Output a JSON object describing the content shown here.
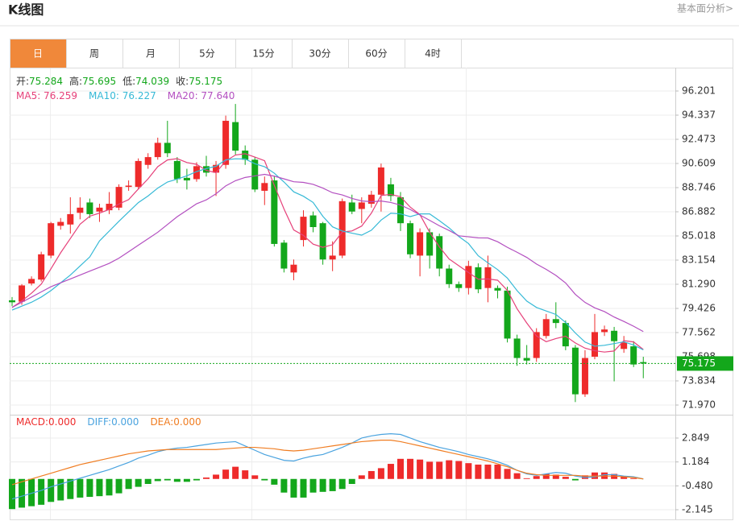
{
  "header": {
    "title": "K线图",
    "link": "基本面分析>"
  },
  "tabs": [
    "日",
    "周",
    "月",
    "5分",
    "15分",
    "30分",
    "60分",
    "4时"
  ],
  "active_tab": 0,
  "chart_data": [
    {
      "type": "candlestick",
      "info_labels": [
        "开:",
        "高:",
        "低:",
        "收:"
      ],
      "up_color": "#ee2b2b",
      "down_color": "#13a71b",
      "last_price_color": "#13a71b",
      "open": [
        80.05,
        79.95,
        81.35,
        81.65,
        83.5,
        85.8,
        85.9,
        86.8,
        87.6,
        86.9,
        87.0,
        87.2,
        88.8,
        88.8,
        90.5,
        91.1,
        92.2,
        90.8,
        89.5,
        89.4,
        90.4,
        89.9,
        90.5,
        93.8,
        91.6,
        90.9,
        88.5,
        89.3,
        84.5,
        82.2,
        84.7,
        86.6,
        86.0,
        83.2,
        83.5,
        87.6,
        87.1,
        87.5,
        88.2,
        89.0,
        88.0,
        86.0,
        83.5,
        85.3,
        85.0,
        82.5,
        81.3,
        81.0,
        82.6,
        81.0,
        81.0,
        80.8,
        77.1,
        75.6,
        75.6,
        77.3,
        78.6,
        78.3,
        76.4,
        72.8,
        75.7,
        77.6,
        77.7,
        76.3,
        76.5,
        75.284
      ],
      "high": [
        80.3,
        81.3,
        81.9,
        83.8,
        86.1,
        86.4,
        88.0,
        88.0,
        87.9,
        87.5,
        88.4,
        89.0,
        89.3,
        91.0,
        91.4,
        92.6,
        93.9,
        91.1,
        90.2,
        90.7,
        91.2,
        90.8,
        94.3,
        95.2,
        92.0,
        91.1,
        89.6,
        89.6,
        84.7,
        83.2,
        87.0,
        86.9,
        86.1,
        84.6,
        87.9,
        88.2,
        88.0,
        88.5,
        90.6,
        89.5,
        88.4,
        86.2,
        85.6,
        85.6,
        85.2,
        82.8,
        81.5,
        83.1,
        82.9,
        83.5,
        81.2,
        81.1,
        77.4,
        76.6,
        77.9,
        79.0,
        79.9,
        78.5,
        76.6,
        76.2,
        79.0,
        78.1,
        78.0,
        77.3,
        76.9,
        75.695
      ],
      "low": [
        79.6,
        79.7,
        81.2,
        81.5,
        83.3,
        85.5,
        85.2,
        86.3,
        86.4,
        86.1,
        86.7,
        87.0,
        88.5,
        88.6,
        90.2,
        90.9,
        91.1,
        89.1,
        88.6,
        89.2,
        89.6,
        88.1,
        90.2,
        91.3,
        90.5,
        88.4,
        87.4,
        84.2,
        82.2,
        81.6,
        84.2,
        85.3,
        82.8,
        82.3,
        83.3,
        86.7,
        86.0,
        87.2,
        86.9,
        87.7,
        85.4,
        83.3,
        81.9,
        82.5,
        81.9,
        81.0,
        80.7,
        80.5,
        80.6,
        79.9,
        80.2,
        76.8,
        75.0,
        75.1,
        75.3,
        77.1,
        77.9,
        76.2,
        72.2,
        72.6,
        75.5,
        77.3,
        73.8,
        76.0,
        74.9,
        74.039
      ],
      "close": [
        79.9,
        81.2,
        81.7,
        83.6,
        86.0,
        86.1,
        86.7,
        87.2,
        86.7,
        87.2,
        87.5,
        88.8,
        88.9,
        90.8,
        91.1,
        92.2,
        91.4,
        89.4,
        89.3,
        90.4,
        89.9,
        90.5,
        93.9,
        91.6,
        90.9,
        88.6,
        89.1,
        84.4,
        82.5,
        82.8,
        86.5,
        85.7,
        83.2,
        83.5,
        87.7,
        86.9,
        87.6,
        88.2,
        90.3,
        88.1,
        86.0,
        83.6,
        85.3,
        83.5,
        82.5,
        81.3,
        81.0,
        82.7,
        80.9,
        82.6,
        80.8,
        77.1,
        75.6,
        75.4,
        77.6,
        78.6,
        78.3,
        76.5,
        72.8,
        75.6,
        77.6,
        77.8,
        76.9,
        76.8,
        75.1,
        75.175
      ],
      "series": [
        {
          "name": "MA5",
          "legend": "MA5: 76.259",
          "color": "#e6417a",
          "values": [
            79.5,
            80.0,
            80.6,
            81.3,
            82.48,
            83.72,
            84.82,
            85.92,
            86.54,
            86.78,
            87.06,
            87.48,
            87.82,
            88.64,
            89.42,
            90.36,
            90.88,
            90.98,
            90.68,
            90.54,
            90.08,
            89.9,
            90.8,
            91.26,
            91.36,
            91.1,
            90.82,
            88.92,
            87.1,
            85.48,
            85.06,
            84.38,
            84.14,
            84.34,
            85.32,
            85.4,
            85.78,
            86.78,
            88.14,
            88.22,
            88.04,
            87.24,
            86.66,
            85.3,
            84.18,
            83.24,
            82.72,
            82.2,
            81.68,
            81.7,
            81.6,
            80.82,
            79.4,
            78.3,
            77.3,
            76.86,
            77.1,
            77.28,
            76.76,
            76.36,
            76.16,
            76.06,
            76.14,
            76.94,
            76.84,
            76.259
          ]
        },
        {
          "name": "MA10",
          "legend": "MA10: 76.227",
          "color": "#36b9d6",
          "values": [
            79.3,
            79.6,
            79.9,
            80.3,
            80.8,
            81.4,
            82.0,
            82.7,
            83.4,
            84.63,
            85.39,
            86.15,
            86.87,
            87.59,
            88.1,
            88.71,
            89.18,
            89.4,
            89.66,
            89.98,
            90.22,
            90.39,
            90.89,
            90.97,
            90.95,
            90.59,
            90.36,
            89.86,
            89.18,
            88.42,
            88.08,
            87.6,
            86.53,
            85.72,
            85.4,
            85.23,
            85.08,
            85.46,
            86.24,
            86.77,
            86.72,
            86.51,
            86.72,
            86.72,
            86.2,
            85.64,
            84.98,
            84.43,
            83.49,
            82.94,
            82.42,
            81.77,
            80.8,
            79.99,
            79.5,
            79.23,
            78.96,
            78.34,
            77.53,
            76.83,
            76.51,
            76.58,
            76.71,
            76.85,
            76.6,
            76.227
          ]
        },
        {
          "name": "MA20",
          "legend": "MA20: 77.640",
          "color": "#b34fc0",
          "values": [
            79.5,
            79.9,
            80.3,
            80.7,
            81.1,
            81.4,
            81.7,
            82.0,
            82.3,
            82.6,
            82.9,
            83.3,
            83.8,
            84.3,
            84.8,
            85.3,
            85.9,
            86.5,
            87.0,
            87.5,
            87.8,
            88.27,
            88.88,
            89.28,
            89.53,
            89.65,
            89.77,
            89.63,
            89.42,
            89.2,
            89.15,
            89.0,
            88.71,
            88.35,
            88.18,
            87.91,
            87.72,
            87.66,
            87.71,
            87.6,
            87.4,
            87.06,
            86.63,
            86.22,
            85.8,
            85.44,
            85.03,
            84.95,
            84.87,
            84.86,
            84.57,
            84.14,
            83.76,
            83.36,
            82.85,
            82.44,
            81.97,
            81.39,
            80.51,
            79.89,
            79.47,
            79.18,
            78.76,
            78.42,
            78.05,
            77.64
          ]
        }
      ],
      "ylim": [
        71.349,
        98.002
      ],
      "yticks": [
        96.201,
        94.337,
        92.473,
        90.609,
        88.746,
        86.882,
        85.018,
        83.154,
        {
          "value": 81.29,
          "label": "81.290"
        },
        79.426,
        77.562,
        75.698,
        73.834,
        {
          "value": 71.97,
          "label": "71.970"
        }
      ],
      "grid": true
    },
    {
      "type": "macd",
      "histogram": {
        "legend": "MACD:0.000",
        "up_color": "#ee2b2b",
        "down_color": "#13a71b",
        "values": [
          -2.1,
          -2.0,
          -1.9,
          -1.8,
          -1.6,
          -1.5,
          -1.4,
          -1.3,
          -1.25,
          -1.2,
          -1.15,
          -1.0,
          -0.7,
          -0.55,
          -0.35,
          -0.15,
          -0.1,
          -0.2,
          -0.2,
          -0.1,
          0.1,
          0.3,
          0.65,
          0.85,
          0.6,
          0.25,
          -0.1,
          -0.4,
          -0.95,
          -1.3,
          -1.3,
          -0.95,
          -0.9,
          -0.85,
          -0.7,
          -0.35,
          0.25,
          0.55,
          0.75,
          1.05,
          1.4,
          1.4,
          1.35,
          1.2,
          1.2,
          1.3,
          1.25,
          1.1,
          1.0,
          1.0,
          1.0,
          0.7,
          0.4,
          0.05,
          0.2,
          0.35,
          0.3,
          0.15,
          -0.1,
          0.25,
          0.45,
          0.45,
          0.35,
          0.2,
          0.05,
          0
        ]
      },
      "series": [
        {
          "name": "DIFF",
          "legend": "DIFF:0.000",
          "color": "#4aa3df",
          "values": [
            -1.4,
            -1.2,
            -1.0,
            -0.8,
            -0.55,
            -0.35,
            -0.15,
            0.05,
            0.25,
            0.45,
            0.65,
            0.9,
            1.15,
            1.45,
            1.65,
            1.9,
            2.05,
            2.15,
            2.2,
            2.3,
            2.4,
            2.5,
            2.55,
            2.6,
            2.3,
            2.0,
            1.7,
            1.5,
            1.3,
            1.25,
            1.45,
            1.6,
            1.7,
            1.95,
            2.2,
            2.5,
            2.85,
            3.0,
            3.1,
            3.15,
            3.1,
            2.85,
            2.6,
            2.4,
            2.2,
            2.05,
            1.9,
            1.7,
            1.55,
            1.4,
            1.2,
            0.95,
            0.6,
            0.35,
            0.25,
            0.35,
            0.45,
            0.4,
            0.2,
            0.1,
            0.15,
            0.3,
            0.3,
            0.2,
            0.15,
            0
          ]
        },
        {
          "name": "DEA",
          "legend": "DEA:0.000",
          "color": "#f07d22",
          "values": [
            -0.4,
            -0.2,
            0.0,
            0.2,
            0.4,
            0.6,
            0.8,
            1.0,
            1.15,
            1.3,
            1.45,
            1.6,
            1.75,
            1.85,
            1.95,
            2.0,
            2.05,
            2.05,
            2.05,
            2.05,
            2.05,
            2.05,
            2.1,
            2.15,
            2.2,
            2.2,
            2.15,
            2.1,
            2.0,
            1.95,
            2.0,
            2.1,
            2.2,
            2.3,
            2.4,
            2.5,
            2.6,
            2.65,
            2.7,
            2.7,
            2.6,
            2.45,
            2.3,
            2.15,
            2.0,
            1.85,
            1.7,
            1.55,
            1.4,
            1.25,
            1.05,
            0.85,
            0.6,
            0.4,
            0.3,
            0.25,
            0.25,
            0.25,
            0.25,
            0.2,
            0.2,
            0.2,
            0.2,
            0.15,
            0.1,
            0
          ]
        }
      ],
      "ylim": [
        -2.818,
        4.475
      ],
      "yticks": [
        2.849,
        1.184,
        {
          "value": -0.48,
          "label": "-0.480"
        },
        -2.145
      ],
      "grid": true
    }
  ]
}
